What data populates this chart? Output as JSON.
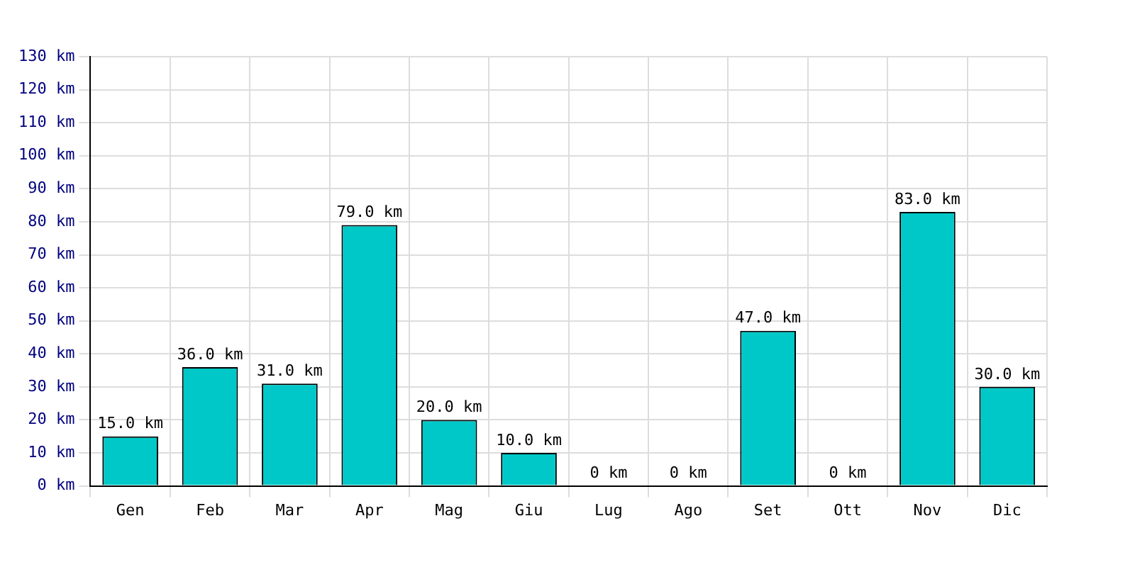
{
  "chart_data": {
    "type": "bar",
    "categories": [
      "Gen",
      "Feb",
      "Mar",
      "Apr",
      "Mag",
      "Giu",
      "Lug",
      "Ago",
      "Set",
      "Ott",
      "Nov",
      "Dic"
    ],
    "values": [
      15,
      36,
      31,
      79,
      20,
      10,
      0,
      0,
      47,
      0,
      83,
      30
    ],
    "value_labels": [
      "15.0 km",
      "36.0 km",
      "31.0 km",
      "79.0 km",
      "20.0 km",
      "10.0 km",
      "0 km",
      "0 km",
      "47.0 km",
      "0 km",
      "83.0 km",
      "30.0 km"
    ],
    "color": "#00c8c8",
    "ylim": [
      0,
      130
    ],
    "yticks": [
      {
        "value": 0,
        "label": "0 km"
      },
      {
        "value": 10,
        "label": "10 km"
      },
      {
        "value": 20,
        "label": "20 km"
      },
      {
        "value": 30,
        "label": "30 km"
      },
      {
        "value": 40,
        "label": "40 km"
      },
      {
        "value": 50,
        "label": "50 km"
      },
      {
        "value": 60,
        "label": "60 km"
      },
      {
        "value": 70,
        "label": "70 km"
      },
      {
        "value": 80,
        "label": "80 km"
      },
      {
        "value": 90,
        "label": "90 km"
      },
      {
        "value": 100,
        "label": "100 km"
      },
      {
        "value": 110,
        "label": "110 km"
      },
      {
        "value": 120,
        "label": "120 km"
      },
      {
        "value": 130,
        "label": "130 km"
      }
    ],
    "grid": true,
    "legend": false
  }
}
